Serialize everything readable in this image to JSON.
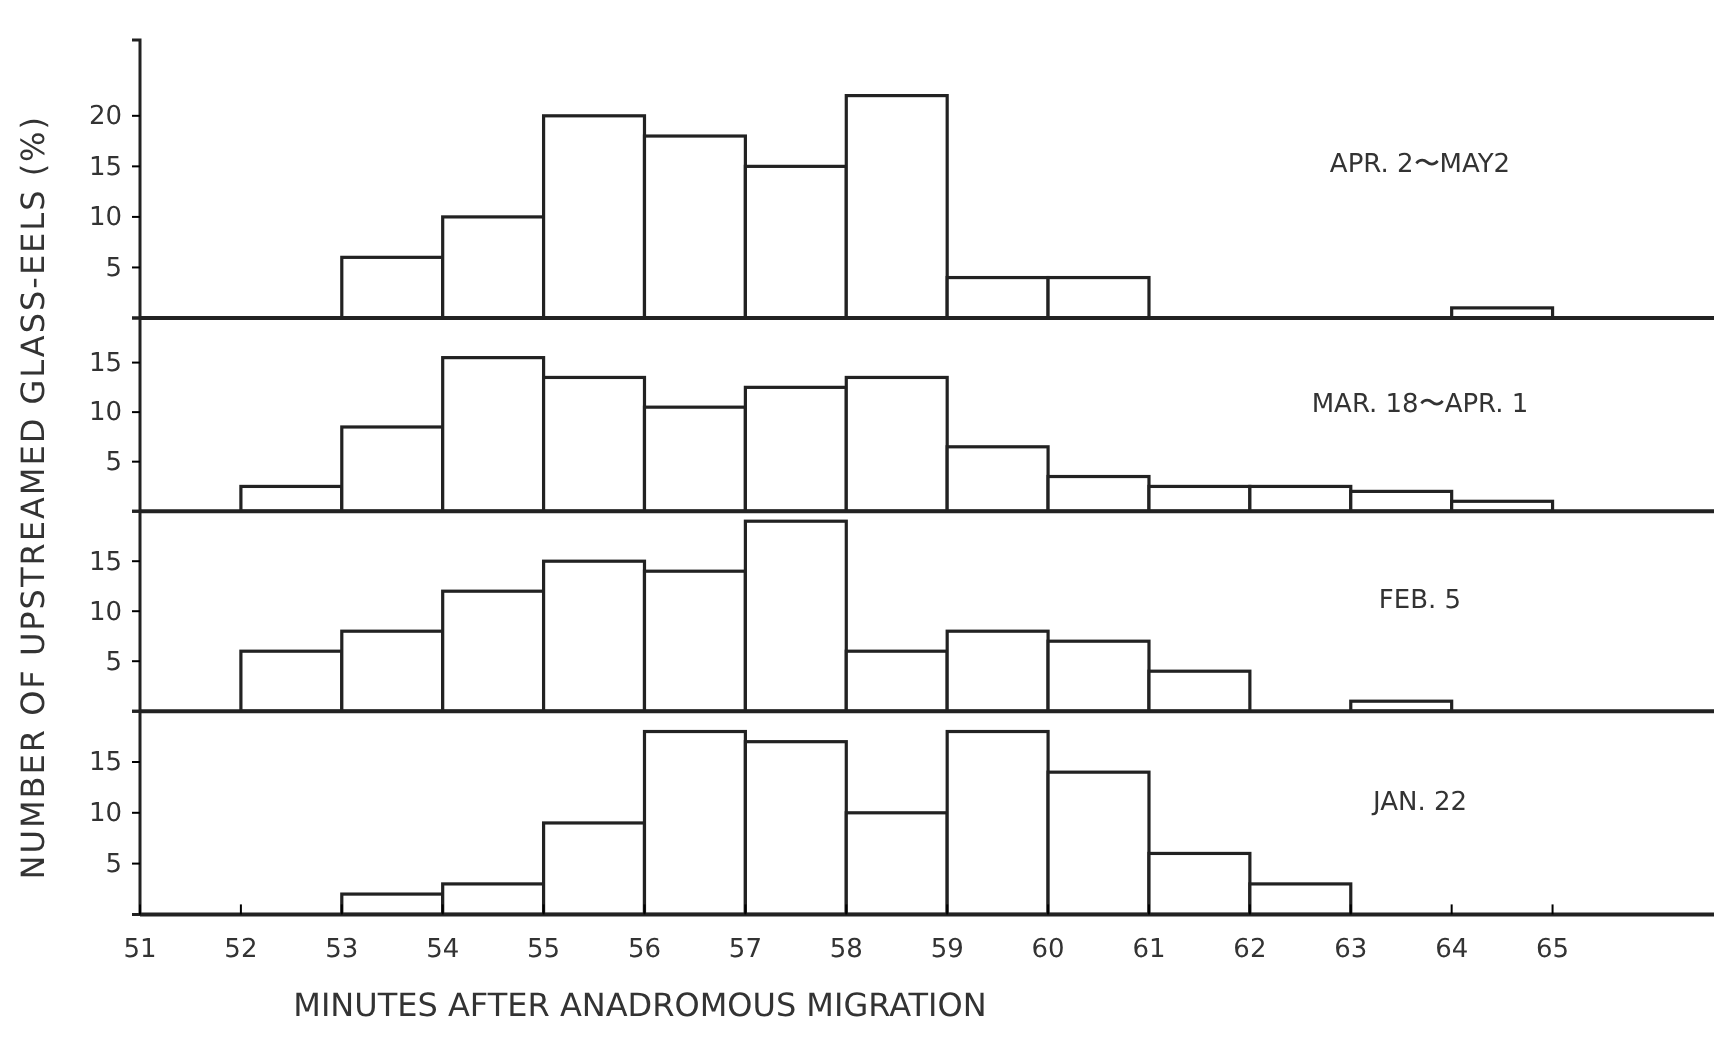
{
  "chart_data": [
    {
      "type": "histogram",
      "title": "APR. 2〜MAY2",
      "bins": [
        51,
        52,
        53,
        54,
        55,
        56,
        57,
        58,
        59,
        60,
        61,
        62,
        63,
        64,
        65
      ],
      "values": [
        0,
        0,
        6,
        10,
        20,
        18,
        15,
        22,
        4,
        4,
        0,
        0,
        0,
        1
      ],
      "color": "#ffffff",
      "xlim": [
        51,
        66.6
      ],
      "xticks": [
        51,
        52,
        53,
        54,
        55,
        56,
        57,
        58,
        59,
        60,
        61,
        62,
        63,
        64,
        65
      ],
      "ylim": [
        0,
        27.5
      ],
      "yticks": [
        5,
        10,
        15,
        20
      ],
      "tick_labels": "y"
    },
    {
      "type": "histogram",
      "title": "MAR. 18〜APR. 1",
      "bins": [
        51,
        52,
        53,
        54,
        55,
        56,
        57,
        58,
        59,
        60,
        61,
        62,
        63,
        64,
        65
      ],
      "values": [
        0,
        2.5,
        8.5,
        15.5,
        13.5,
        10.5,
        12.5,
        13.5,
        6.5,
        3.5,
        2.5,
        2.5,
        2,
        1
      ],
      "color": "#ffffff",
      "xlim": [
        51,
        66.6
      ],
      "xticks": [
        51,
        52,
        53,
        54,
        55,
        56,
        57,
        58,
        59,
        60,
        61,
        62,
        63,
        64,
        65
      ],
      "ylim": [
        0,
        19.5
      ],
      "yticks": [
        5,
        10,
        15
      ],
      "tick_labels": "y"
    },
    {
      "type": "histogram",
      "title": "FEB. 5",
      "bins": [
        51,
        52,
        53,
        54,
        55,
        56,
        57,
        58,
        59,
        60,
        61,
        62,
        63,
        64,
        65
      ],
      "values": [
        0,
        6,
        8,
        12,
        15,
        14,
        19,
        6,
        8,
        7,
        4,
        0,
        1,
        0
      ],
      "color": "#ffffff",
      "xlim": [
        51,
        66.6
      ],
      "xticks": [
        51,
        52,
        53,
        54,
        55,
        56,
        57,
        58,
        59,
        60,
        61,
        62,
        63,
        64,
        65
      ],
      "ylim": [
        0,
        20
      ],
      "yticks": [
        5,
        10,
        15
      ],
      "tick_labels": "y"
    },
    {
      "type": "histogram",
      "title": "JAN. 22",
      "xlabel": "MINUTES AFTER ANADROMOUS MIGRATION",
      "ylabel": "NUMBER OF UPSTREAMED GLASS-EELS (%)",
      "bins": [
        51,
        52,
        53,
        54,
        55,
        56,
        57,
        58,
        59,
        60,
        61,
        62,
        63,
        64,
        65
      ],
      "values": [
        0,
        0,
        2,
        3,
        9,
        18,
        17,
        10,
        18,
        14,
        6,
        3,
        0,
        0
      ],
      "color": "#ffffff",
      "xlim": [
        51,
        66.6
      ],
      "xticks": [
        51,
        52,
        53,
        54,
        55,
        56,
        57,
        58,
        59,
        60,
        61,
        62,
        63,
        64,
        65
      ],
      "ylim": [
        0,
        20
      ],
      "yticks": [
        5,
        10,
        15
      ]
    }
  ]
}
